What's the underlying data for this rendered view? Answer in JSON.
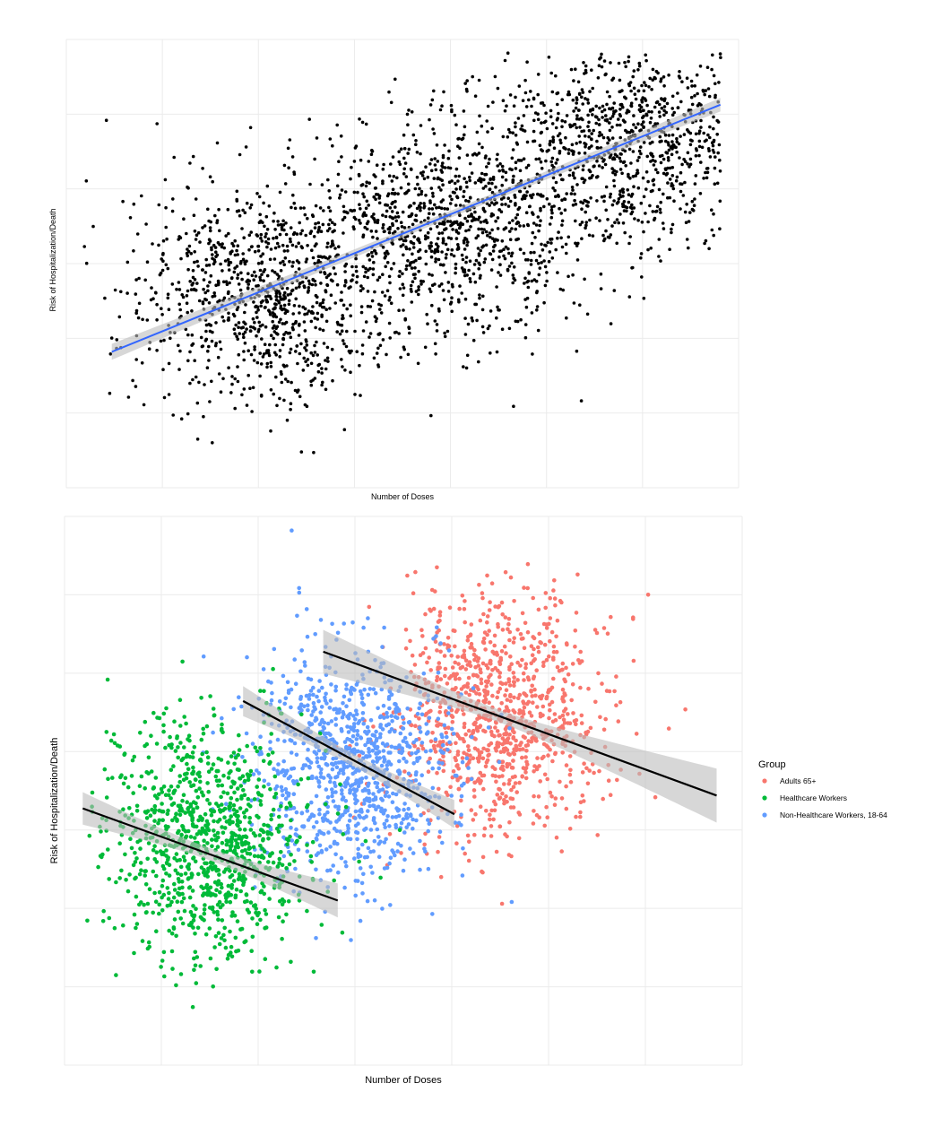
{
  "chart_data": [
    {
      "type": "scatter",
      "title": "",
      "xlabel": "Number of Doses",
      "ylabel": "Risk of Hospitalization/Death",
      "axis_ticks_labels": "none",
      "grid": true,
      "legend": "none",
      "n_points": 3000,
      "point_color": "#000000",
      "series": [
        {
          "name": "",
          "clusters": [
            {
              "center": [
                2.0,
                1.0
              ],
              "sd": [
                0.75,
                0.95
              ],
              "n": 1000
            },
            {
              "center": [
                4.0,
                2.3
              ],
              "sd": [
                0.75,
                0.95
              ],
              "n": 1000
            },
            {
              "center": [
                6.0,
                3.7
              ],
              "sd": [
                0.75,
                0.95
              ],
              "n": 1000
            }
          ]
        }
      ],
      "fit": {
        "method": "lm",
        "color": "#3366FF",
        "ci_band": true,
        "x_range": [
          0.3,
          7.0
        ],
        "intercept": -0.2,
        "slope": 0.65
      },
      "xlim": [
        -0.2,
        7.2
      ],
      "ylim": [
        -2.4,
        5.5
      ]
    },
    {
      "type": "scatter",
      "title": "",
      "xlabel": "Number of Doses",
      "ylabel": "Risk of Hospitalization/Death",
      "axis_ticks_labels": "none",
      "grid": true,
      "legend": "right",
      "legend_title": "Group",
      "series": [
        {
          "name": "Adults 65+",
          "color": "#F8766D",
          "center": [
            4.0,
            1.2
          ],
          "sd": [
            0.7,
            0.55
          ],
          "n": 1000,
          "fit": {
            "intercept": 2.18,
            "slope": -0.25,
            "x_range": [
              1.6,
              7.0
            ]
          }
        },
        {
          "name": "Healthcare Workers",
          "color": "#00BA38",
          "center": [
            0.0,
            0.0
          ],
          "sd": [
            0.7,
            0.55
          ],
          "n": 1000,
          "fit": {
            "intercept": -0.11,
            "slope": -0.247,
            "x_range": [
              -1.7,
              1.8
            ]
          }
        },
        {
          "name": "Non-Healthcare Workers, 18-64",
          "color": "#619CFF",
          "center": [
            2.0,
            0.7
          ],
          "sd": [
            0.7,
            0.55
          ],
          "n": 1000,
          "fit": {
            "intercept": 1.5,
            "slope": -0.366,
            "x_range": [
              0.5,
              3.4
            ]
          }
        }
      ],
      "fit_color": "#000000",
      "xlim": [
        -1.95,
        7.35
      ],
      "ylim": [
        -2.1,
        3.05
      ]
    }
  ]
}
